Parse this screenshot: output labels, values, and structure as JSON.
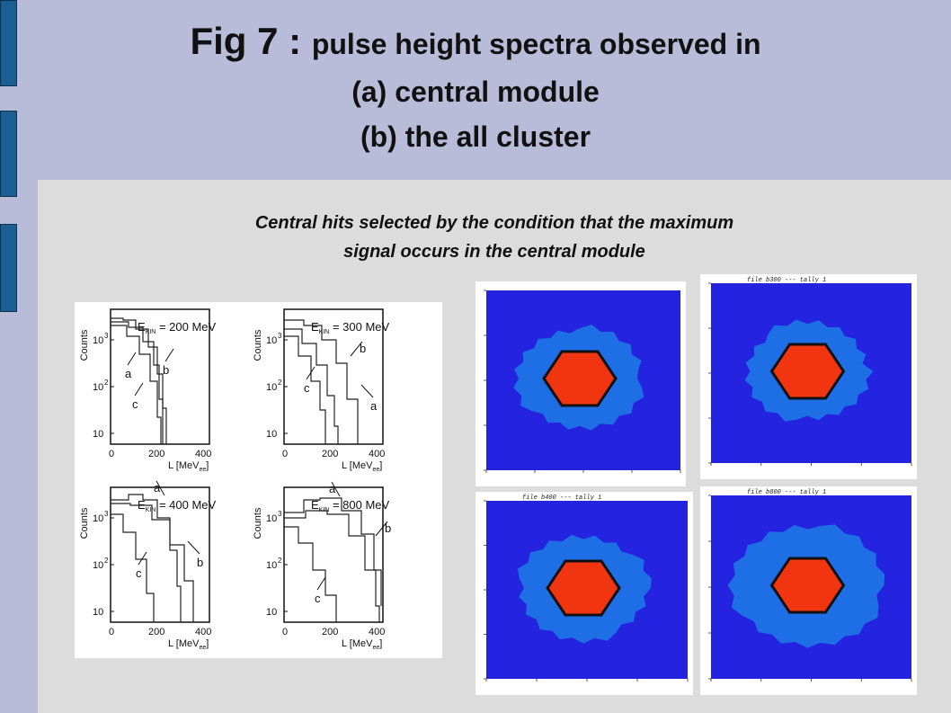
{
  "title": {
    "prefix": "Fig 7 : ",
    "rest": "pulse height spectra observed in",
    "line2": "(a) central module",
    "line3": "(b) the all cluster"
  },
  "caption": {
    "line1": "Central hits selected by the condition that the maximum",
    "line2": "signal occurs in the central module"
  },
  "spectra": {
    "ylabel": "Counts",
    "xlabel_main": "L [MeV",
    "xlabel_sub": "ee",
    "xticks": [
      "0",
      "200",
      "400"
    ],
    "yticks": [
      "10",
      "10",
      "10"
    ],
    "yexp": [
      "3",
      "2"
    ],
    "ekin_E": "E",
    "ekin_sub": "KIN",
    "panels": [
      {
        "energy": " = 200 MeV",
        "labels": [
          "a",
          "b",
          "c"
        ]
      },
      {
        "energy": " = 300 MeV",
        "labels": [
          "b",
          "c",
          "a"
        ]
      },
      {
        "energy": " = 400 MeV",
        "labels": [
          "a",
          "c",
          "b"
        ]
      },
      {
        "energy": " = 800 MeV",
        "labels": [
          "a",
          "b",
          "c"
        ]
      }
    ]
  },
  "heatmaps": [
    {
      "header": ""
    },
    {
      "header": "file b300    --- tally    1"
    },
    {
      "header": "file b400    --- tally    1"
    },
    {
      "header": "file b800    --- tally    1"
    }
  ],
  "colors": {
    "background": "#b8bcd9",
    "content": "#dcdcdc",
    "tab": "#1b5e91",
    "heat_outer": "#2323e0",
    "heat_mid": "#1e6fe6",
    "heat_core": "#f03510"
  }
}
